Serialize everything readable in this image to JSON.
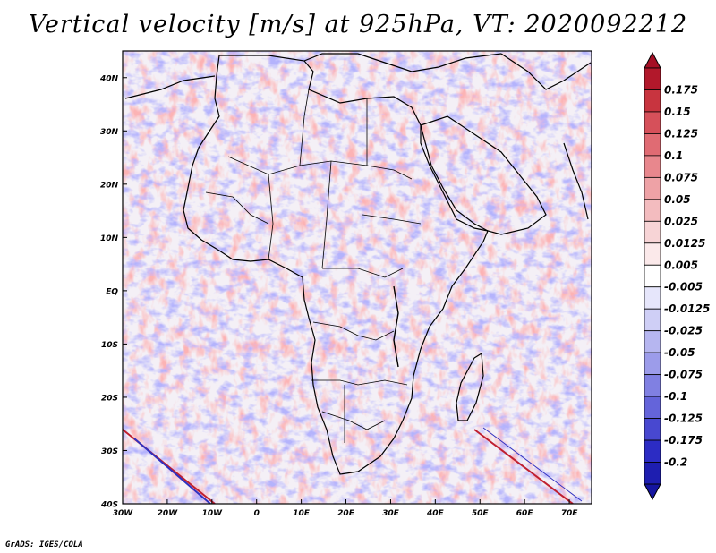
{
  "title": "Vertical velocity [m/s] at 925hPa, VT: 2020092212",
  "footer": "GrADS: IGES/COLA",
  "map": {
    "region": "Africa",
    "lat_labels": [
      "40N",
      "30N",
      "20N",
      "10N",
      "EQ",
      "10S",
      "20S",
      "30S",
      "40S"
    ],
    "lon_labels": [
      "30W",
      "20W",
      "10W",
      "0",
      "10E",
      "20E",
      "30E",
      "40E",
      "50E",
      "60E",
      "70E"
    ],
    "lat_range": [
      -40,
      45
    ],
    "lon_range": [
      -30,
      75
    ]
  },
  "colorbar": {
    "labels": [
      "0.175",
      "0.15",
      "0.125",
      "0.1",
      "0.075",
      "0.05",
      "0.025",
      "0.0125",
      "0.005",
      "-0.005",
      "-0.0125",
      "-0.025",
      "-0.05",
      "-0.075",
      "-0.1",
      "-0.125",
      "-0.175",
      "-0.2"
    ],
    "colors": [
      "#b2182b",
      "#c8343f",
      "#d6505a",
      "#e06b73",
      "#e8878d",
      "#eea2a6",
      "#f3bcbf",
      "#f7d4d6",
      "#fbe9ea",
      "#ffffff",
      "#e6e6fb",
      "#cfcff6",
      "#b6b6f0",
      "#9c9cea",
      "#8080e2",
      "#6464da",
      "#4848d0",
      "#2c2cc4",
      "#1e1eb0"
    ],
    "top_color": "#a50f25",
    "bottom_color": "#1515a0"
  }
}
